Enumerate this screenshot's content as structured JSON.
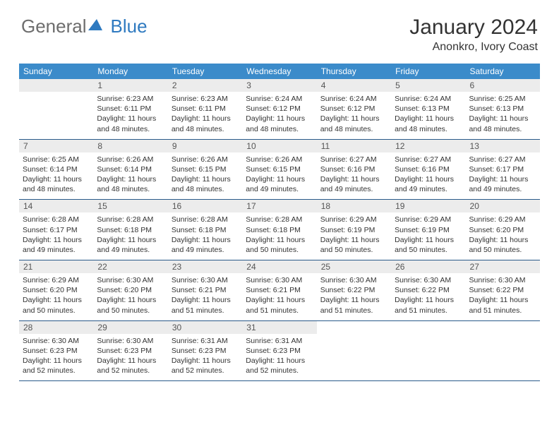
{
  "logo": {
    "general": "General",
    "blue": "Blue"
  },
  "title": "January 2024",
  "location": "Anonkro, Ivory Coast",
  "dayHeaders": [
    "Sunday",
    "Monday",
    "Tuesday",
    "Wednesday",
    "Thursday",
    "Friday",
    "Saturday"
  ],
  "colors": {
    "headerBg": "#3b8bca",
    "headerText": "#ffffff",
    "dayNumBg": "#ececec",
    "borderColor": "#2a5a8a",
    "logoGray": "#6d6d6d",
    "logoBlue": "#2f7ac0"
  },
  "weeks": [
    [
      null,
      {
        "n": "1",
        "sr": "Sunrise: 6:23 AM",
        "ss": "Sunset: 6:11 PM",
        "dl": "Daylight: 11 hours and 48 minutes."
      },
      {
        "n": "2",
        "sr": "Sunrise: 6:23 AM",
        "ss": "Sunset: 6:11 PM",
        "dl": "Daylight: 11 hours and 48 minutes."
      },
      {
        "n": "3",
        "sr": "Sunrise: 6:24 AM",
        "ss": "Sunset: 6:12 PM",
        "dl": "Daylight: 11 hours and 48 minutes."
      },
      {
        "n": "4",
        "sr": "Sunrise: 6:24 AM",
        "ss": "Sunset: 6:12 PM",
        "dl": "Daylight: 11 hours and 48 minutes."
      },
      {
        "n": "5",
        "sr": "Sunrise: 6:24 AM",
        "ss": "Sunset: 6:13 PM",
        "dl": "Daylight: 11 hours and 48 minutes."
      },
      {
        "n": "6",
        "sr": "Sunrise: 6:25 AM",
        "ss": "Sunset: 6:13 PM",
        "dl": "Daylight: 11 hours and 48 minutes."
      }
    ],
    [
      {
        "n": "7",
        "sr": "Sunrise: 6:25 AM",
        "ss": "Sunset: 6:14 PM",
        "dl": "Daylight: 11 hours and 48 minutes."
      },
      {
        "n": "8",
        "sr": "Sunrise: 6:26 AM",
        "ss": "Sunset: 6:14 PM",
        "dl": "Daylight: 11 hours and 48 minutes."
      },
      {
        "n": "9",
        "sr": "Sunrise: 6:26 AM",
        "ss": "Sunset: 6:15 PM",
        "dl": "Daylight: 11 hours and 48 minutes."
      },
      {
        "n": "10",
        "sr": "Sunrise: 6:26 AM",
        "ss": "Sunset: 6:15 PM",
        "dl": "Daylight: 11 hours and 49 minutes."
      },
      {
        "n": "11",
        "sr": "Sunrise: 6:27 AM",
        "ss": "Sunset: 6:16 PM",
        "dl": "Daylight: 11 hours and 49 minutes."
      },
      {
        "n": "12",
        "sr": "Sunrise: 6:27 AM",
        "ss": "Sunset: 6:16 PM",
        "dl": "Daylight: 11 hours and 49 minutes."
      },
      {
        "n": "13",
        "sr": "Sunrise: 6:27 AM",
        "ss": "Sunset: 6:17 PM",
        "dl": "Daylight: 11 hours and 49 minutes."
      }
    ],
    [
      {
        "n": "14",
        "sr": "Sunrise: 6:28 AM",
        "ss": "Sunset: 6:17 PM",
        "dl": "Daylight: 11 hours and 49 minutes."
      },
      {
        "n": "15",
        "sr": "Sunrise: 6:28 AM",
        "ss": "Sunset: 6:18 PM",
        "dl": "Daylight: 11 hours and 49 minutes."
      },
      {
        "n": "16",
        "sr": "Sunrise: 6:28 AM",
        "ss": "Sunset: 6:18 PM",
        "dl": "Daylight: 11 hours and 49 minutes."
      },
      {
        "n": "17",
        "sr": "Sunrise: 6:28 AM",
        "ss": "Sunset: 6:18 PM",
        "dl": "Daylight: 11 hours and 50 minutes."
      },
      {
        "n": "18",
        "sr": "Sunrise: 6:29 AM",
        "ss": "Sunset: 6:19 PM",
        "dl": "Daylight: 11 hours and 50 minutes."
      },
      {
        "n": "19",
        "sr": "Sunrise: 6:29 AM",
        "ss": "Sunset: 6:19 PM",
        "dl": "Daylight: 11 hours and 50 minutes."
      },
      {
        "n": "20",
        "sr": "Sunrise: 6:29 AM",
        "ss": "Sunset: 6:20 PM",
        "dl": "Daylight: 11 hours and 50 minutes."
      }
    ],
    [
      {
        "n": "21",
        "sr": "Sunrise: 6:29 AM",
        "ss": "Sunset: 6:20 PM",
        "dl": "Daylight: 11 hours and 50 minutes."
      },
      {
        "n": "22",
        "sr": "Sunrise: 6:30 AM",
        "ss": "Sunset: 6:20 PM",
        "dl": "Daylight: 11 hours and 50 minutes."
      },
      {
        "n": "23",
        "sr": "Sunrise: 6:30 AM",
        "ss": "Sunset: 6:21 PM",
        "dl": "Daylight: 11 hours and 51 minutes."
      },
      {
        "n": "24",
        "sr": "Sunrise: 6:30 AM",
        "ss": "Sunset: 6:21 PM",
        "dl": "Daylight: 11 hours and 51 minutes."
      },
      {
        "n": "25",
        "sr": "Sunrise: 6:30 AM",
        "ss": "Sunset: 6:22 PM",
        "dl": "Daylight: 11 hours and 51 minutes."
      },
      {
        "n": "26",
        "sr": "Sunrise: 6:30 AM",
        "ss": "Sunset: 6:22 PM",
        "dl": "Daylight: 11 hours and 51 minutes."
      },
      {
        "n": "27",
        "sr": "Sunrise: 6:30 AM",
        "ss": "Sunset: 6:22 PM",
        "dl": "Daylight: 11 hours and 51 minutes."
      }
    ],
    [
      {
        "n": "28",
        "sr": "Sunrise: 6:30 AM",
        "ss": "Sunset: 6:23 PM",
        "dl": "Daylight: 11 hours and 52 minutes."
      },
      {
        "n": "29",
        "sr": "Sunrise: 6:30 AM",
        "ss": "Sunset: 6:23 PM",
        "dl": "Daylight: 11 hours and 52 minutes."
      },
      {
        "n": "30",
        "sr": "Sunrise: 6:31 AM",
        "ss": "Sunset: 6:23 PM",
        "dl": "Daylight: 11 hours and 52 minutes."
      },
      {
        "n": "31",
        "sr": "Sunrise: 6:31 AM",
        "ss": "Sunset: 6:23 PM",
        "dl": "Daylight: 11 hours and 52 minutes."
      },
      null,
      null,
      null
    ]
  ]
}
